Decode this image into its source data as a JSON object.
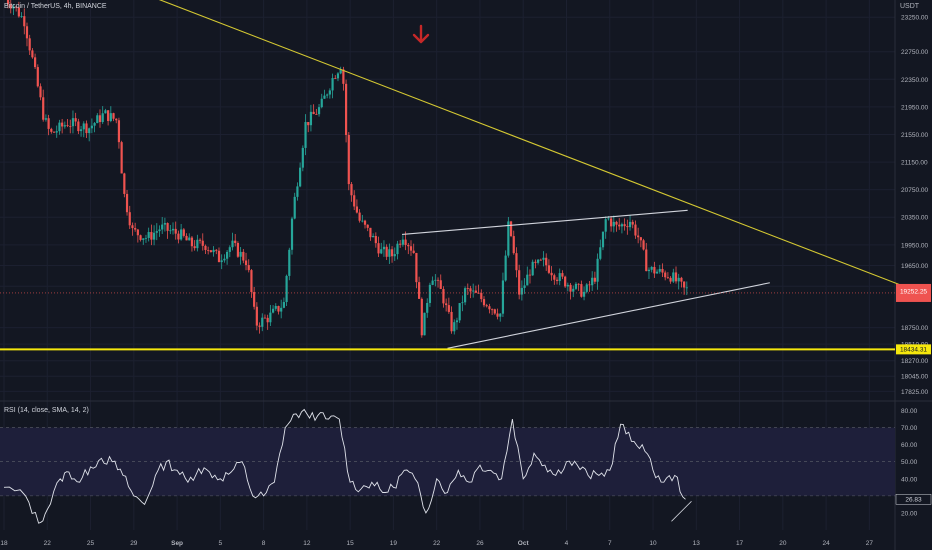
{
  "header": {
    "title": "Bitcoin / TetherUS, 4h, BINANCE",
    "unit": "USDT"
  },
  "price_badges": {
    "current": "19252.25",
    "line": "18434.31"
  },
  "rsi": {
    "title": "RSI (14, close, SMA, 14, 2)",
    "value_badge": "26.83"
  },
  "colors": {
    "background": "#131722",
    "up": "#26a69a",
    "down": "#ef5350",
    "trendline": "#d4c832",
    "support": "#f5e70d",
    "channel": "#d1d4dc",
    "rsi_line": "#e0e3eb",
    "rsi_band": "#1e1f3a",
    "arrow": "#c62828"
  },
  "icons": {
    "signal_arrow": "down-arrow-icon"
  },
  "chart_data": [
    {
      "type": "candlestick",
      "title": "Bitcoin / TetherUS, 4h, BINANCE",
      "y_axis_labels": [
        "23250.00",
        "22750.00",
        "22350.00",
        "21950.00",
        "21550.00",
        "21150.00",
        "20750.00",
        "20350.00",
        "19950.00",
        "19650.00",
        "19350.00",
        "18750.00",
        "18510.00",
        "18270.00",
        "18045.00",
        "17825.00"
      ],
      "x_axis_labels": [
        "18",
        "22",
        "25",
        "29",
        "Sep",
        "5",
        "8",
        "12",
        "15",
        "19",
        "22",
        "26",
        "Oct",
        "4",
        "7",
        "10",
        "13",
        "17",
        "20",
        "24",
        "27"
      ],
      "ylim": [
        17700,
        23500
      ],
      "x_index_range": [
        0,
        41
      ],
      "x_tick_positions": [
        0,
        2,
        4,
        6,
        8,
        10,
        12,
        14,
        16,
        18,
        20,
        22,
        24,
        26,
        28,
        30,
        32,
        34,
        36,
        38,
        40
      ],
      "price_path": [
        [
          0,
          23550
        ],
        [
          0.5,
          23420
        ],
        [
          1,
          23200
        ],
        [
          1.4,
          22600
        ],
        [
          1.9,
          21800
        ],
        [
          2.2,
          21550
        ],
        [
          3,
          21720
        ],
        [
          4,
          21650
        ],
        [
          4.7,
          21850
        ],
        [
          5.3,
          21750
        ],
        [
          5.6,
          20700
        ],
        [
          6,
          20150
        ],
        [
          6.7,
          20050
        ],
        [
          7.3,
          20200
        ],
        [
          8.2,
          20100
        ],
        [
          8.7,
          19950
        ],
        [
          9.4,
          19950
        ],
        [
          10,
          19750
        ],
        [
          10.6,
          19950
        ],
        [
          11.3,
          19700
        ],
        [
          11.7,
          18800
        ],
        [
          12.3,
          18900
        ],
        [
          13,
          19100
        ],
        [
          13.4,
          20400
        ],
        [
          14,
          21700
        ],
        [
          14.7,
          21950
        ],
        [
          15.3,
          22400
        ],
        [
          15.7,
          22600
        ],
        [
          16,
          20800
        ],
        [
          16.5,
          20300
        ],
        [
          17,
          20100
        ],
        [
          17.5,
          19850
        ],
        [
          18,
          19800
        ],
        [
          18.5,
          20100
        ],
        [
          19,
          19850
        ],
        [
          19.4,
          18650
        ],
        [
          19.8,
          19550
        ],
        [
          20.3,
          19250
        ],
        [
          20.8,
          18700
        ],
        [
          21.4,
          19300
        ],
        [
          22,
          19200
        ],
        [
          22.6,
          19050
        ],
        [
          23,
          18950
        ],
        [
          23.4,
          20300
        ],
        [
          23.9,
          19200
        ],
        [
          24.4,
          19600
        ],
        [
          25,
          19700
        ],
        [
          25.6,
          19500
        ],
        [
          26.3,
          19350
        ],
        [
          26.9,
          19250
        ],
        [
          27.4,
          19500
        ],
        [
          27.9,
          20350
        ],
        [
          28.4,
          20200
        ],
        [
          29,
          20300
        ],
        [
          29.4,
          20050
        ],
        [
          29.8,
          19600
        ],
        [
          30.4,
          19550
        ],
        [
          30.9,
          19500
        ],
        [
          31.5,
          19300
        ]
      ],
      "support_level": 18434.31,
      "current_price": 19252.25,
      "trendlines": [
        {
          "name": "descending-resistance",
          "from": [
            6.4,
            23600
          ],
          "to": [
            42,
            19300
          ]
        },
        {
          "name": "channel-top",
          "from": [
            18.4,
            20100
          ],
          "to": [
            31.6,
            20450
          ]
        },
        {
          "name": "channel-bottom",
          "from": [
            20.5,
            18450
          ],
          "to": [
            35.4,
            19400
          ]
        }
      ]
    },
    {
      "type": "line",
      "title": "RSI (14, close, SMA, 14, 2)",
      "y_axis_labels": [
        "80.00",
        "70.00",
        "60.00",
        "50.00",
        "40.00",
        "30.00",
        "20.00"
      ],
      "ylim": [
        10,
        85
      ],
      "band": [
        30,
        70
      ],
      "x": [
        0,
        1,
        1.6,
        2,
        2.6,
        3,
        3.5,
        4,
        4.5,
        5,
        5.5,
        6,
        6.5,
        7,
        7.5,
        8,
        8.5,
        9,
        9.5,
        10,
        10.5,
        11,
        11.5,
        12,
        12.5,
        13,
        13.5,
        14,
        14.5,
        15,
        15.5,
        16,
        16.5,
        17,
        17.5,
        18,
        18.5,
        19,
        19.5,
        20,
        20.5,
        21,
        21.5,
        22,
        22.5,
        23,
        23.5,
        24,
        24.5,
        25,
        25.5,
        26,
        26.5,
        27,
        27.5,
        28,
        28.5,
        29,
        29.5,
        30,
        30.5,
        31,
        31.5
      ],
      "values": [
        35,
        30,
        14,
        22,
        40,
        44,
        38,
        47,
        52,
        50,
        42,
        30,
        25,
        42,
        50,
        45,
        38,
        46,
        44,
        40,
        44,
        50,
        30,
        30,
        38,
        70,
        78,
        78,
        77,
        75,
        75,
        38,
        34,
        38,
        32,
        35,
        45,
        40,
        20,
        40,
        32,
        45,
        38,
        48,
        45,
        40,
        75,
        40,
        55,
        48,
        42,
        50,
        48,
        42,
        42,
        45,
        72,
        62,
        60,
        45,
        38,
        42,
        28
      ]
    }
  ]
}
